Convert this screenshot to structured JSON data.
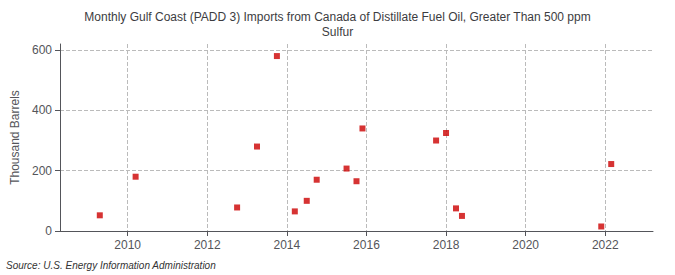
{
  "chart_data": {
    "type": "scatter",
    "title": "Monthly Gulf Coast (PADD 3) Imports from Canada of Distillate Fuel Oil, Greater Than 500 ppm\nSulfur",
    "ylabel": "Thousand Barrels",
    "annotation": "Source: U.S. Energy Information Administration",
    "x": [
      2009.3,
      2010.2,
      2012.75,
      2013.25,
      2013.75,
      2014.2,
      2014.5,
      2014.75,
      2015.5,
      2015.75,
      2015.9,
      2017.75,
      2018.0,
      2018.25,
      2018.4,
      2021.9,
      2022.15
    ],
    "values": [
      52,
      180,
      78,
      280,
      580,
      65,
      100,
      170,
      207,
      165,
      340,
      300,
      325,
      75,
      50,
      15,
      222
    ],
    "color": "#cc0000",
    "marker": "square",
    "xlim": [
      2008.3,
      2023.2
    ],
    "ylim": [
      0,
      620
    ],
    "xticks": [
      2010,
      2012,
      2014,
      2016,
      2018,
      2020,
      2022
    ],
    "yticks": [
      0,
      200,
      400,
      600
    ],
    "grid": true
  }
}
